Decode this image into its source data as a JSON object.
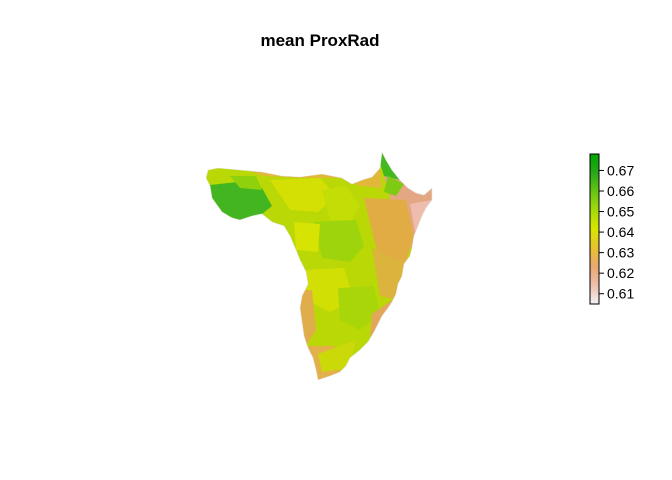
{
  "title": "mean ProxRad",
  "legend": {
    "ticks": [
      {
        "value": 0.67,
        "label": "0.67"
      },
      {
        "value": 0.66,
        "label": "0.66"
      },
      {
        "value": 0.65,
        "label": "0.65"
      },
      {
        "value": 0.64,
        "label": "0.64"
      },
      {
        "value": 0.63,
        "label": "0.63"
      },
      {
        "value": 0.62,
        "label": "0.62"
      },
      {
        "value": 0.61,
        "label": "0.61"
      }
    ],
    "range": [
      0.605,
      0.678
    ],
    "colors": [
      "#f2f2f2",
      "#eebfae",
      "#e8a86f",
      "#e8c32e",
      "#d8e500",
      "#a5d90a",
      "#65c614",
      "#2aa71b",
      "#00a600"
    ]
  }
}
